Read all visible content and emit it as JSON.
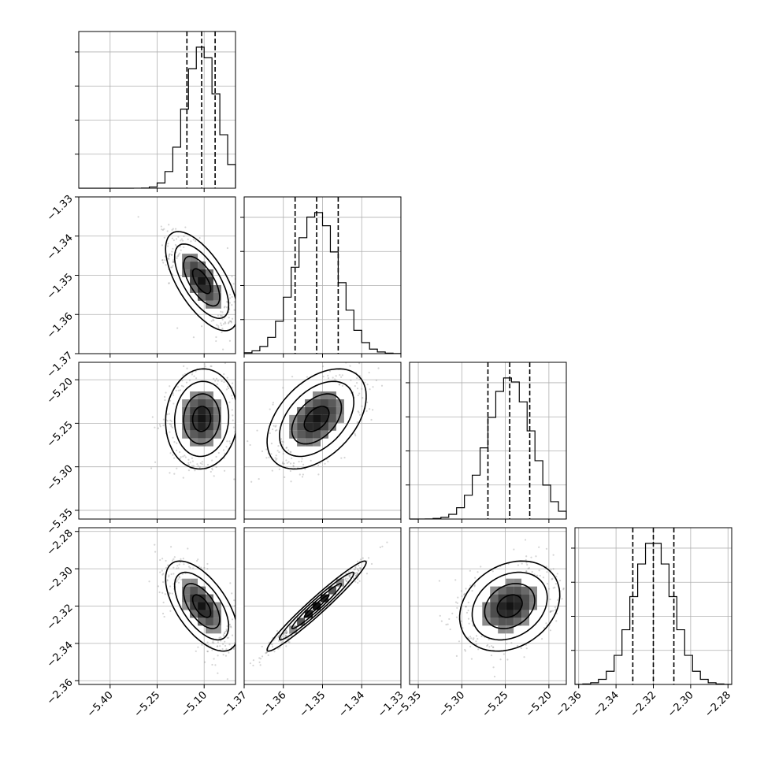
{
  "chart_data": {
    "type": "corner",
    "grid": true,
    "title": "",
    "parameters": [
      {
        "name": "",
        "range": [
          -5.5,
          -5.0
        ],
        "ticks": [
          -5.4,
          -5.25,
          -5.1
        ],
        "tick_labels": [
          "−5.40",
          "−5.25",
          "−5.10"
        ],
        "mean": -5.108,
        "sigma": 0.05,
        "quantiles": [
          -5.155,
          -5.108,
          -5.065
        ]
      },
      {
        "name": "",
        "range": [
          -1.37,
          -1.33
        ],
        "ticks": [
          -1.37,
          -1.36,
          -1.35,
          -1.34,
          -1.33
        ],
        "tick_labels": [
          "−1.37",
          "−1.36",
          "−1.35",
          "−1.34",
          "−1.33"
        ],
        "mean": -1.3515,
        "sigma": 0.0055,
        "quantiles": [
          -1.357,
          -1.3515,
          -1.346
        ]
      },
      {
        "name": "",
        "range": [
          -5.36,
          -5.18
        ],
        "ticks": [
          -5.35,
          -5.3,
          -5.25,
          -5.2
        ],
        "tick_labels": [
          "−5.35",
          "−5.30",
          "−5.25",
          "−5.20"
        ],
        "mean": -5.245,
        "sigma": 0.025,
        "quantiles": [
          -5.27,
          -5.245,
          -5.222
        ]
      },
      {
        "name": "",
        "range": [
          -2.362,
          -2.278
        ],
        "ticks": [
          -2.36,
          -2.34,
          -2.32,
          -2.3,
          -2.28
        ],
        "tick_labels": [
          "−2.36",
          "−2.34",
          "−2.32",
          "−2.30",
          "−2.28"
        ],
        "mean": -2.32,
        "sigma": 0.0105,
        "quantiles": [
          -2.331,
          -2.32,
          -2.309
        ]
      }
    ],
    "histogram_bins": 20,
    "correlations": [
      {
        "x": 0,
        "y": 1,
        "r": -0.65
      },
      {
        "x": 0,
        "y": 2,
        "r": 0.05
      },
      {
        "x": 1,
        "y": 2,
        "r": 0.45
      },
      {
        "x": 0,
        "y": 3,
        "r": -0.6
      },
      {
        "x": 1,
        "y": 3,
        "r": 0.97
      },
      {
        "x": 2,
        "y": 3,
        "r": 0.25
      }
    ],
    "contour_levels_sigma": [
      0.5,
      1.0,
      1.5,
      2.0
    ]
  }
}
